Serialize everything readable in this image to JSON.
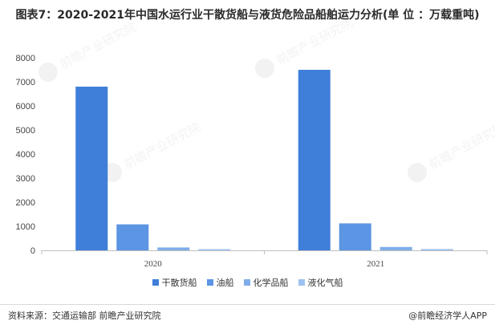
{
  "title": "图表7：2020-2021年中国水运行业干散货船与液货危险品船舶运力分析(单 位 ：万载重吨)",
  "source": "资料来源：交通运输部 前瞻产业研究院",
  "brand": "@前瞻经济学人APP",
  "watermark": "前瞻产业研究院",
  "chart_data": {
    "type": "bar",
    "categories": [
      "2020",
      "2021"
    ],
    "series": [
      {
        "name": "干散货船",
        "values": [
          6800,
          7500
        ],
        "color": "#3F7FD9"
      },
      {
        "name": "油船",
        "values": [
          1080,
          1120
        ],
        "color": "#5B95E3"
      },
      {
        "name": "化学品船",
        "values": [
          120,
          140
        ],
        "color": "#7FAEEA"
      },
      {
        "name": "液化气船",
        "values": [
          50,
          55
        ],
        "color": "#9CC2F0"
      }
    ],
    "ylim": [
      0,
      8000
    ],
    "yticks": [
      0,
      1000,
      2000,
      3000,
      4000,
      5000,
      6000,
      7000,
      8000
    ],
    "grid": false,
    "legend": "bottom"
  }
}
